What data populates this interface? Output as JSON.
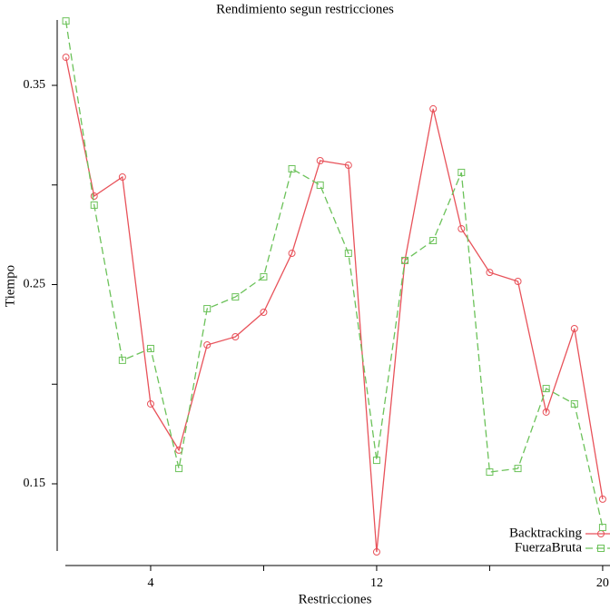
{
  "chart_data": {
    "type": "line",
    "title": "Rendimiento segun restricciones",
    "xlabel": "Restricciones",
    "ylabel": "Tiempo",
    "x": [
      1,
      2,
      3,
      4,
      5,
      6,
      7,
      8,
      9,
      10,
      11,
      12,
      13,
      14,
      15,
      16,
      17,
      18,
      19,
      20
    ],
    "series": [
      {
        "name": "Backtracking",
        "color": "#e8525a",
        "dash": false,
        "marker": "circle",
        "values": [
          0.3641,
          0.2944,
          0.304,
          0.1901,
          0.1669,
          0.2197,
          0.2238,
          0.2361,
          0.2657,
          0.3122,
          0.3099,
          0.1158,
          0.2621,
          0.3382,
          0.278,
          0.2561,
          0.2516,
          0.186,
          0.2279,
          0.1423
        ]
      },
      {
        "name": "FuerzaBruta",
        "color": "#6cc25a",
        "dash": true,
        "marker": "square",
        "values": [
          0.3823,
          0.2899,
          0.212,
          0.2179,
          0.1577,
          0.2379,
          0.2438,
          0.2539,
          0.3081,
          0.2999,
          0.2657,
          0.1618,
          0.2621,
          0.2721,
          0.3063,
          0.1559,
          0.1577,
          0.1978,
          0.1901,
          0.1281
        ]
      }
    ],
    "xlim": [
      0.7,
      20.25
    ],
    "ylim": [
      0.115,
      0.383
    ],
    "xticks": [
      4,
      12,
      20
    ],
    "xminor_ticks": [
      8,
      16
    ],
    "yticks": [
      0.15,
      0.25,
      0.35
    ],
    "yminor_ticks": [
      0.2,
      0.3
    ],
    "legend": "bottom-right",
    "grid": false
  }
}
